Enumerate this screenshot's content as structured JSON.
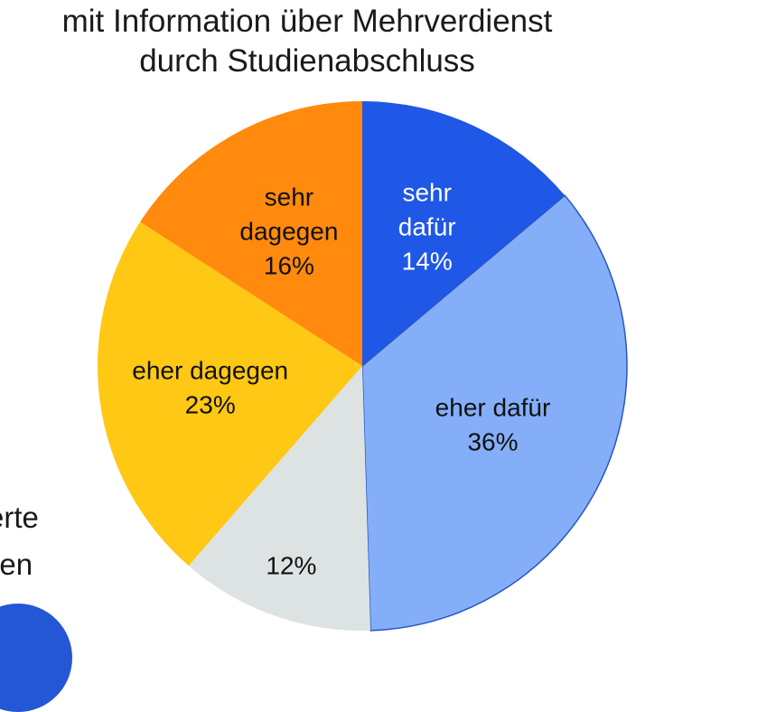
{
  "chart_data": {
    "type": "pie",
    "title_lines": [
      "mit Information über Mehrverdienst",
      "durch Studienabschluss"
    ],
    "slices": [
      {
        "label_lines": [
          "sehr",
          "dafür"
        ],
        "value": 14,
        "value_label": "14%",
        "color": "#1f57e6",
        "text_color": "#ffffff"
      },
      {
        "label_lines": [
          "eher dafür"
        ],
        "value": 36,
        "value_label": "36%",
        "color": "#84aef8",
        "text_color": "#111111"
      },
      {
        "label_lines": [],
        "value": 12,
        "value_label": "12%",
        "color": "#dde3e3",
        "text_color": "#111111"
      },
      {
        "label_lines": [
          "eher dagegen"
        ],
        "value": 23,
        "value_label": "23%",
        "color": "#ffc814",
        "text_color": "#111111"
      },
      {
        "label_lines": [
          "sehr",
          "dagegen"
        ],
        "value": 16,
        "value_label": "16%",
        "color": "#ff8a0d",
        "text_color": "#111111"
      }
    ],
    "start_angle_deg": 0,
    "direction": "clockwise",
    "legend": "none"
  },
  "side_text": {
    "line1": "erte",
    "line2": "hren"
  },
  "colors": {
    "corner_shape": "#2457d6",
    "slice_border": "#2a56c4"
  }
}
